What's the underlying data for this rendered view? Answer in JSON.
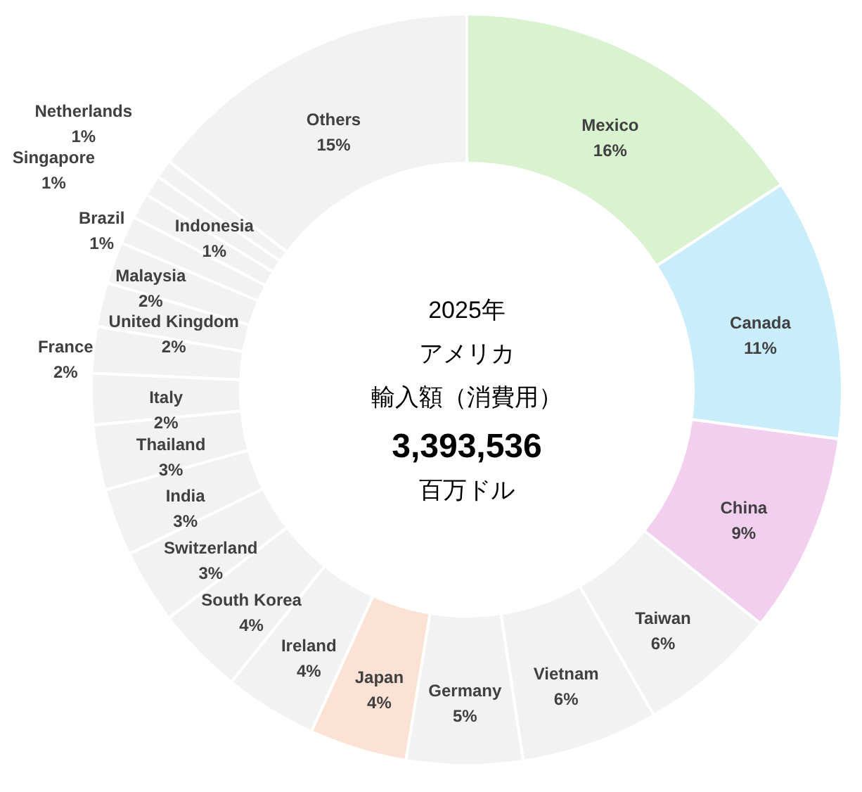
{
  "chart_data": {
    "type": "donut",
    "categories": [
      "Mexico",
      "Canada",
      "China",
      "Taiwan",
      "Vietnam",
      "Germany",
      "Japan",
      "Ireland",
      "South Korea",
      "Switzerland",
      "India",
      "Thailand",
      "Italy",
      "France",
      "United Kingdom",
      "Malaysia",
      "Brazil",
      "Singapore",
      "Indonesia",
      "Netherlands",
      "Others"
    ],
    "values": [
      15.8,
      11.3,
      8.6,
      6.0,
      5.9,
      5.0,
      4.2,
      4.0,
      3.8,
      3.2,
      2.9,
      2.8,
      2.2,
      2.0,
      1.9,
      1.8,
      1.2,
      1.1,
      0.9,
      0.8,
      14.6
    ],
    "value_labels": [
      "16%",
      "11%",
      "9%",
      "6%",
      "6%",
      "5%",
      "4%",
      "4%",
      "4%",
      "3%",
      "3%",
      "3%",
      "2%",
      "2%",
      "2%",
      "2%",
      "1%",
      "1%",
      "1%",
      "1%",
      "15%"
    ],
    "colors": [
      "#d9f2d0",
      "#caedfb",
      "#f2ceef",
      "#f2f2f2",
      "#f2f2f2",
      "#f2f2f2",
      "#fbe2d5",
      "#f2f2f2",
      "#f2f2f2",
      "#f2f2f2",
      "#f2f2f2",
      "#f2f2f2",
      "#f2f2f2",
      "#f2f2f2",
      "#f2f2f2",
      "#f2f2f2",
      "#f2f2f2",
      "#f2f2f2",
      "#f2f2f2",
      "#f2f2f2",
      "#f2f2f2"
    ],
    "annotations": [
      "2025年",
      "アメリカ",
      "輸入額（消費用）",
      "百万ドル"
    ],
    "totals": [
      "3,393,536"
    ]
  }
}
